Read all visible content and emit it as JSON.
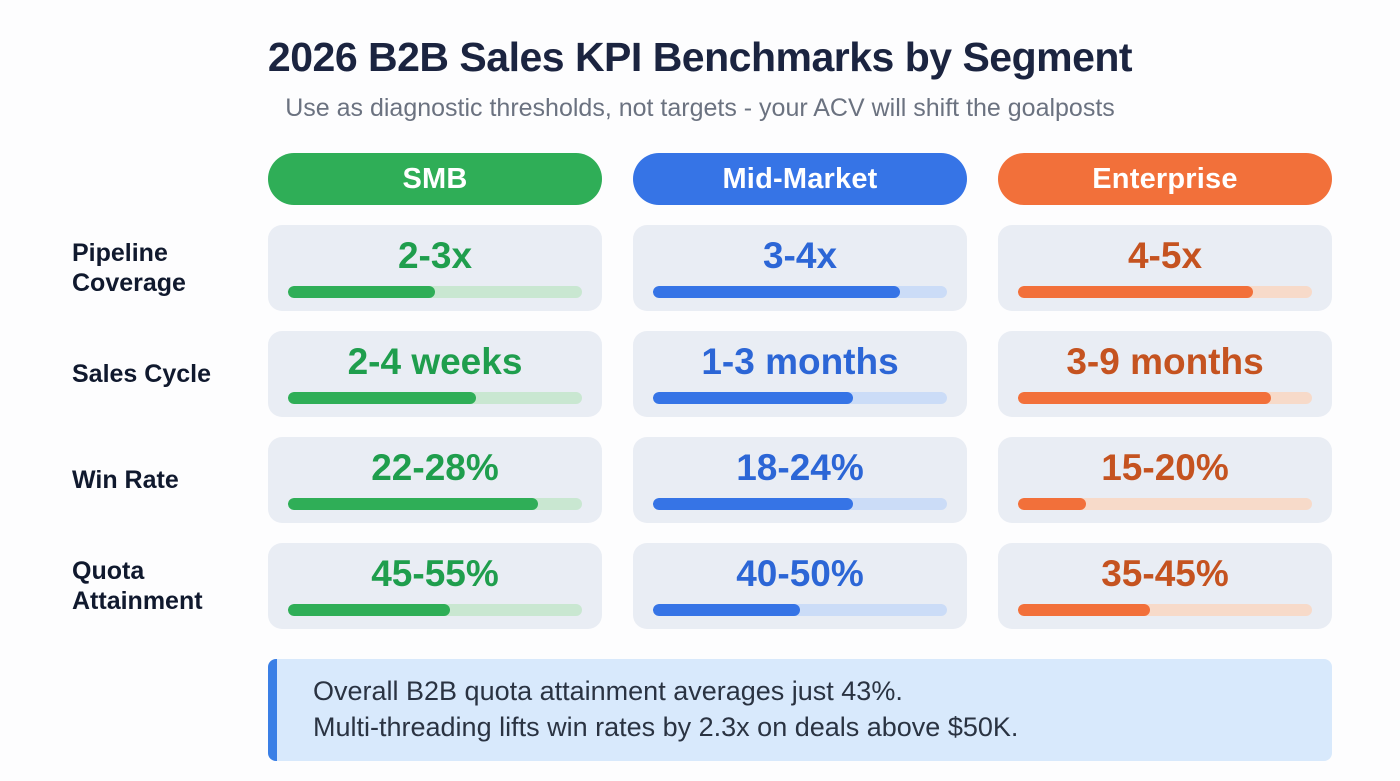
{
  "header": {
    "title": "2026 B2B Sales KPI Benchmarks by Segment",
    "subtitle": "Use as diagnostic thresholds, not targets - your ACV will shift the goalposts"
  },
  "chart_data": {
    "type": "table",
    "title": "2026 B2B Sales KPI Benchmarks by Segment",
    "subtitle": "Use as diagnostic thresholds, not targets - your ACV will shift the goalposts",
    "columns": [
      {
        "label": "SMB",
        "color": "#2fae57",
        "value_color": "#1f9e4d",
        "track_color": "#c9e7d1"
      },
      {
        "label": "Mid-Market",
        "color": "#3674e6",
        "value_color": "#2c66d6",
        "track_color": "#cbdcf7"
      },
      {
        "label": "Enterprise",
        "color": "#f2703a",
        "value_color": "#c55320",
        "track_color": "#f7dac9"
      }
    ],
    "rows": [
      {
        "metric": "Pipeline Coverage",
        "values": [
          "2-3x",
          "3-4x",
          "4-5x"
        ],
        "bar_fill_pct": [
          50,
          84,
          80
        ]
      },
      {
        "metric": "Sales Cycle",
        "values": [
          "2-4 weeks",
          "1-3 months",
          "3-9 months"
        ],
        "bar_fill_pct": [
          64,
          68,
          86
        ]
      },
      {
        "metric": "Win Rate",
        "values": [
          "22-28%",
          "18-24%",
          "15-20%"
        ],
        "bar_fill_pct": [
          85,
          68,
          23
        ]
      },
      {
        "metric": "Quota Attainment",
        "values": [
          "45-55%",
          "40-50%",
          "35-45%"
        ],
        "bar_fill_pct": [
          55,
          50,
          45
        ]
      }
    ],
    "notes": [
      "Overall B2B quota attainment averages just 43%.",
      "Multi-threading lifts win rates by 2.3x on deals above $50K."
    ]
  },
  "callout": {
    "lines": [
      "Overall B2B quota attainment averages just 43%.",
      "Multi-threading lifts win rates by 2.3x on deals above $50K."
    ],
    "background": "#d8e9fc",
    "border_color": "#3a7fe6"
  },
  "colors": {
    "cell_background": "#e9edf4",
    "title": "#1b2440",
    "subtitle": "#6b7280",
    "row_label": "#10192e"
  }
}
